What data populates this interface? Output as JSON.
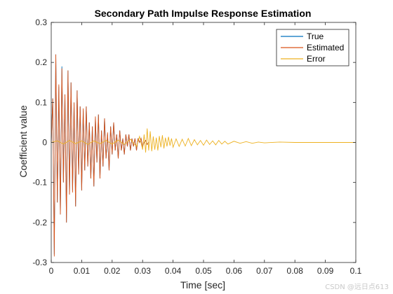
{
  "chart_data": {
    "type": "line",
    "title": "Secondary Path Impulse Response Estimation",
    "xlabel": "Time [sec]",
    "ylabel": "Coefficient value",
    "xlim": [
      0,
      0.1
    ],
    "ylim": [
      -0.3,
      0.3
    ],
    "xticks": [
      "0",
      "0.01",
      "0.02",
      "0.03",
      "0.04",
      "0.05",
      "0.06",
      "0.07",
      "0.08",
      "0.09",
      "0.1"
    ],
    "yticks": [
      "0.3",
      "0.2",
      "0.1",
      "0",
      "-0.1",
      "-0.2",
      "-0.3"
    ],
    "legend_position": "top-right",
    "series": [
      {
        "name": "True",
        "color": "#0072BD",
        "x": [
          0,
          0.0005,
          0.001,
          0.0015,
          0.002,
          0.0025,
          0.003,
          0.0035,
          0.004,
          0.0045,
          0.005,
          0.0055,
          0.006,
          0.0065,
          0.007,
          0.0075,
          0.008,
          0.0085,
          0.009,
          0.0095,
          0.01,
          0.0105,
          0.011,
          0.0115,
          0.012,
          0.0125,
          0.013,
          0.0135,
          0.014,
          0.0145,
          0.015,
          0.0155,
          0.016,
          0.0165,
          0.017,
          0.0175,
          0.018,
          0.0185,
          0.019,
          0.0195,
          0.02,
          0.0205,
          0.021,
          0.0215,
          0.022,
          0.0225,
          0.023,
          0.0235,
          0.024,
          0.0245,
          0.025,
          0.0255,
          0.026,
          0.0265,
          0.027,
          0.0275,
          0.028,
          0.0285,
          0.029,
          0.0295,
          0.03,
          0.0305,
          0.031,
          0.0315,
          0.032
        ],
        "y": [
          0,
          0.11,
          -0.28,
          0.22,
          -0.15,
          0.14,
          -0.18,
          0.19,
          -0.1,
          0.12,
          -0.2,
          0.18,
          -0.13,
          0.15,
          -0.12,
          0.1,
          -0.16,
          0.13,
          -0.08,
          0.09,
          -0.12,
          0.08,
          -0.07,
          0.09,
          -0.06,
          0.05,
          -0.09,
          0.04,
          -0.11,
          0.06,
          -0.05,
          0.07,
          -0.09,
          0.03,
          -0.06,
          0.06,
          -0.04,
          0.02,
          -0.07,
          0.04,
          -0.03,
          0.05,
          -0.02,
          0.02,
          -0.04,
          0.03,
          -0.02,
          0.01,
          -0.03,
          0.02,
          -0.01,
          0.02,
          -0.02,
          0.01,
          -0.01,
          0.01,
          -0.02,
          0.01,
          0,
          0.01,
          -0.01,
          0,
          0.005,
          -0.005,
          0
        ]
      },
      {
        "name": "Estimated",
        "color": "#D95319",
        "x": [
          0,
          0.0005,
          0.001,
          0.0015,
          0.002,
          0.0025,
          0.003,
          0.0035,
          0.004,
          0.0045,
          0.005,
          0.0055,
          0.006,
          0.0065,
          0.007,
          0.0075,
          0.008,
          0.0085,
          0.009,
          0.0095,
          0.01,
          0.0105,
          0.011,
          0.0115,
          0.012,
          0.0125,
          0.013,
          0.0135,
          0.014,
          0.0145,
          0.015,
          0.0155,
          0.016,
          0.0165,
          0.017,
          0.0175,
          0.018,
          0.0185,
          0.019,
          0.0195,
          0.02,
          0.0205,
          0.021,
          0.0215,
          0.022,
          0.0225,
          0.023,
          0.0235,
          0.024,
          0.0245,
          0.025,
          0.0255,
          0.026,
          0.0265,
          0.027,
          0.0275,
          0.028,
          0.0285,
          0.029,
          0.0295,
          0.03,
          0.0305,
          0.031,
          0.0315,
          0.032
        ],
        "y": [
          0,
          0.11,
          -0.285,
          0.22,
          -0.15,
          0.145,
          -0.18,
          0.185,
          -0.1,
          0.12,
          -0.2,
          0.18,
          -0.13,
          0.15,
          -0.125,
          0.1,
          -0.16,
          0.13,
          -0.08,
          0.09,
          -0.12,
          0.085,
          -0.07,
          0.09,
          -0.06,
          0.05,
          -0.09,
          0.04,
          -0.11,
          0.065,
          -0.05,
          0.07,
          -0.09,
          0.03,
          -0.06,
          0.06,
          -0.04,
          0.025,
          -0.07,
          0.04,
          -0.03,
          0.05,
          -0.02,
          0.02,
          -0.04,
          0.03,
          -0.02,
          0.01,
          -0.03,
          0.02,
          -0.01,
          0.02,
          -0.02,
          0.01,
          -0.01,
          0.01,
          -0.02,
          0.01,
          0,
          0.01,
          -0.01,
          0,
          0.005,
          -0.005,
          0
        ]
      },
      {
        "name": "Error",
        "color": "#EDB120",
        "x": [
          0,
          0.002,
          0.004,
          0.006,
          0.008,
          0.01,
          0.012,
          0.014,
          0.016,
          0.018,
          0.02,
          0.022,
          0.024,
          0.026,
          0.028,
          0.029,
          0.03,
          0.0305,
          0.031,
          0.0315,
          0.032,
          0.0325,
          0.033,
          0.0335,
          0.034,
          0.0345,
          0.035,
          0.0355,
          0.036,
          0.0365,
          0.037,
          0.0375,
          0.038,
          0.0385,
          0.039,
          0.0395,
          0.04,
          0.041,
          0.042,
          0.043,
          0.044,
          0.045,
          0.046,
          0.047,
          0.048,
          0.049,
          0.05,
          0.051,
          0.052,
          0.053,
          0.054,
          0.055,
          0.056,
          0.057,
          0.058,
          0.06,
          0.062,
          0.064,
          0.066,
          0.068,
          0.07,
          0.075,
          0.08,
          0.09,
          0.1
        ],
        "y": [
          0,
          0.004,
          -0.004,
          0.005,
          -0.003,
          0.004,
          -0.005,
          0.004,
          -0.003,
          0.005,
          -0.004,
          0.006,
          -0.005,
          0.008,
          -0.01,
          0.015,
          -0.018,
          0.02,
          -0.025,
          0.035,
          -0.02,
          0.028,
          -0.022,
          0.015,
          -0.018,
          0.012,
          -0.02,
          0.016,
          -0.012,
          0.018,
          -0.015,
          0.012,
          -0.01,
          0.014,
          -0.008,
          0.01,
          -0.012,
          0.009,
          -0.01,
          0.008,
          -0.009,
          0.01,
          -0.008,
          0.007,
          -0.006,
          0.005,
          -0.007,
          0.006,
          -0.005,
          0.004,
          -0.006,
          0.005,
          -0.004,
          0.003,
          -0.004,
          0.003,
          -0.002,
          0.002,
          -0.002,
          0.001,
          -0.001,
          0.001,
          0,
          0,
          0
        ]
      }
    ]
  },
  "watermark_text": "CSDN @远日点613"
}
